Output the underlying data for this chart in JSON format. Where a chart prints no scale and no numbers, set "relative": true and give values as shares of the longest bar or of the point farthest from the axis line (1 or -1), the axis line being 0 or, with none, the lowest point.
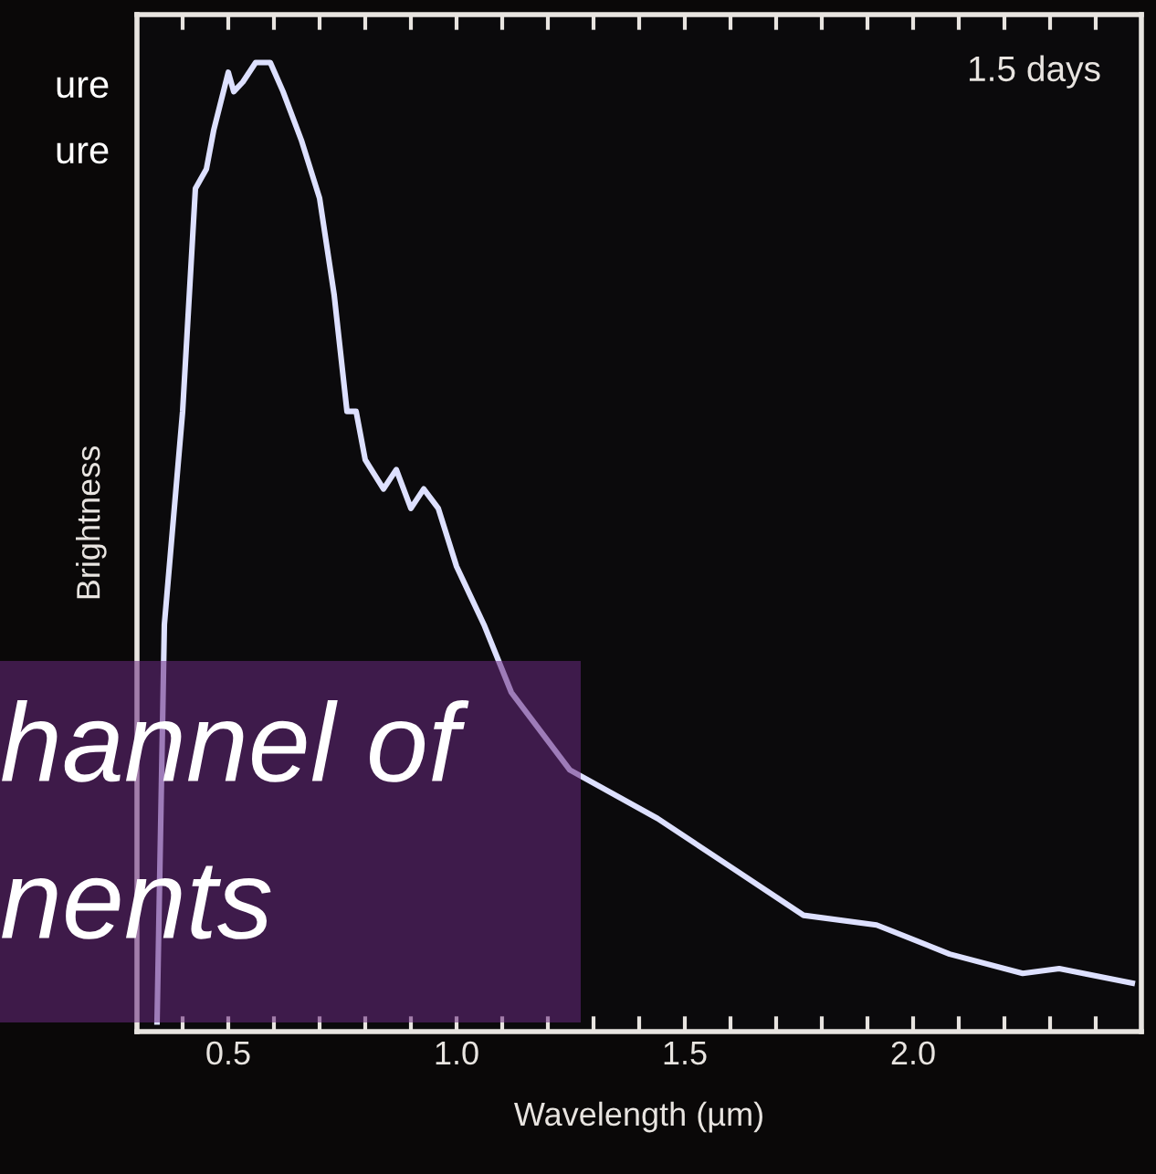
{
  "chart_data": {
    "type": "line",
    "relative": true,
    "xlabel": "Wavelength (µm)",
    "ylabel": "Brightness",
    "annotations": [
      "1.5 days",
      "ure",
      "ure",
      "hannel of",
      "nents"
    ],
    "xlim": [
      0.3,
      2.5
    ],
    "xticks": [
      {
        "value": 0.4,
        "label": null
      },
      0.5,
      {
        "value": 0.6,
        "label": null
      },
      {
        "value": 0.7,
        "label": null
      },
      {
        "value": 0.8,
        "label": null
      },
      {
        "value": 0.9,
        "label": null
      },
      {
        "value": 1.0,
        "label": "1.0"
      },
      {
        "value": 1.1,
        "label": null
      },
      {
        "value": 1.2,
        "label": null
      },
      {
        "value": 1.3,
        "label": null
      },
      {
        "value": 1.4,
        "label": null
      },
      1.5,
      {
        "value": 1.6,
        "label": null
      },
      {
        "value": 1.7,
        "label": null
      },
      {
        "value": 1.8,
        "label": null
      },
      {
        "value": 1.9,
        "label": null
      },
      {
        "value": 2.0,
        "label": "2.0"
      },
      {
        "value": 2.1,
        "label": null
      },
      {
        "value": 2.2,
        "label": null
      },
      {
        "value": 2.3,
        "label": null
      },
      {
        "value": 2.4,
        "label": null
      }
    ],
    "grid": false,
    "legend": false,
    "series": [
      {
        "color": "#dde0ff",
        "x": [
          0.344,
          0.36,
          0.4,
          0.428,
          0.452,
          0.468,
          0.5,
          0.512,
          0.532,
          0.56,
          0.592,
          0.62,
          0.66,
          0.7,
          0.732,
          0.76,
          0.78,
          0.8,
          0.84,
          0.868,
          0.9,
          0.928,
          0.96,
          1.0,
          1.06,
          1.12,
          1.248,
          1.44,
          1.6,
          1.76,
          1.92,
          2.08,
          2.24,
          2.32,
          2.48
        ],
        "values": [
          0.01,
          0.42,
          0.64,
          0.87,
          0.89,
          0.93,
          0.99,
          0.97,
          0.98,
          1.0,
          1.0,
          0.97,
          0.92,
          0.86,
          0.76,
          0.64,
          0.64,
          0.59,
          0.56,
          0.58,
          0.54,
          0.56,
          0.54,
          0.48,
          0.42,
          0.35,
          0.27,
          0.22,
          0.17,
          0.12,
          0.11,
          0.08,
          0.06,
          0.065,
          0.05
        ]
      }
    ]
  }
}
